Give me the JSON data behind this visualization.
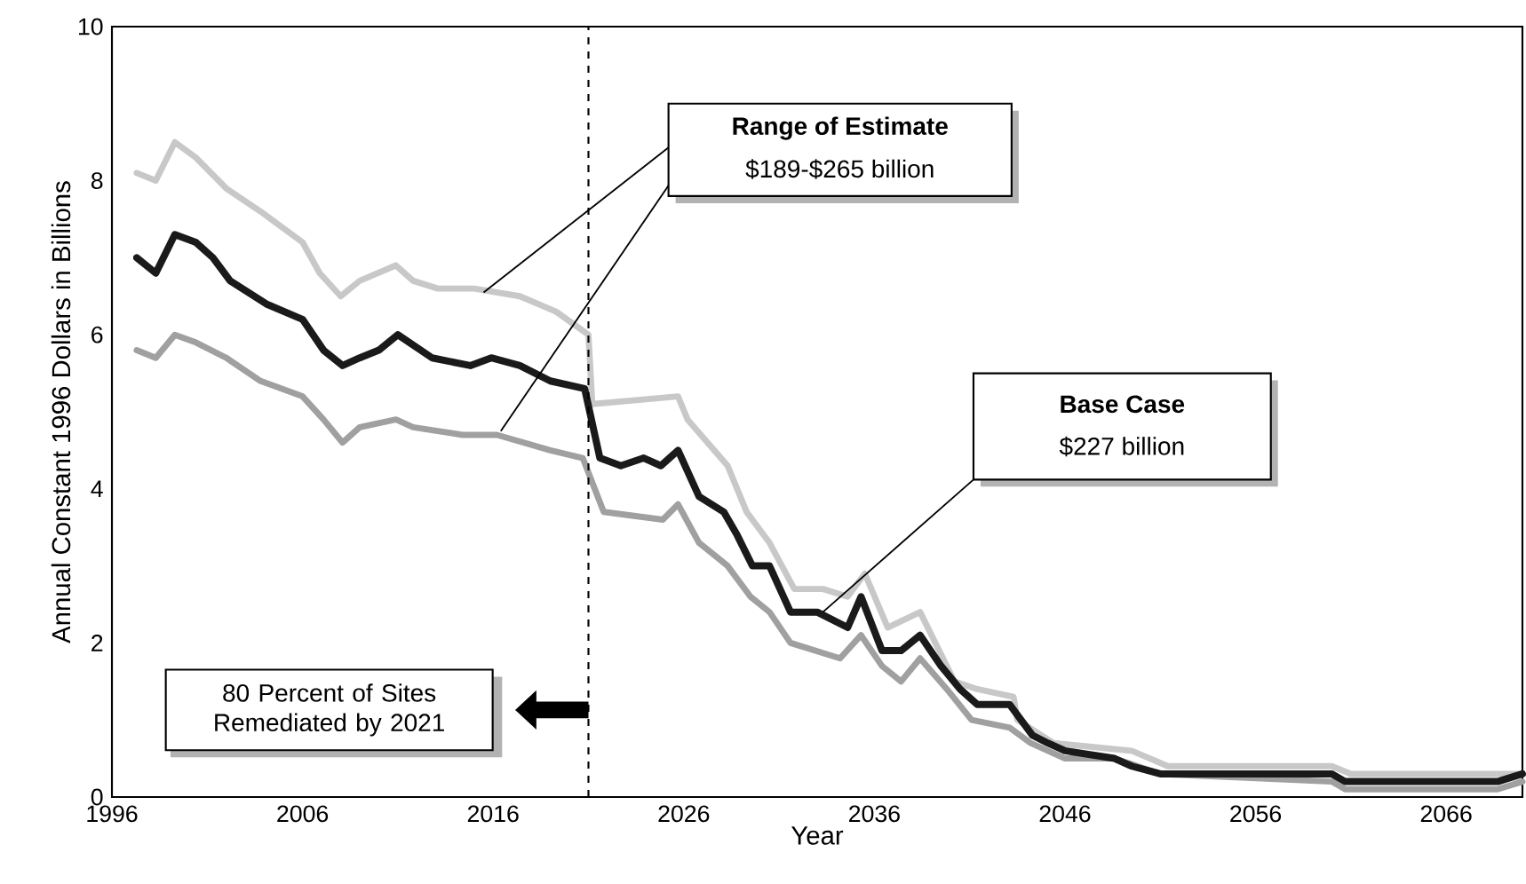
{
  "chart_data": {
    "type": "line",
    "xlabel": "Year",
    "ylabel": "Annual Constant 1996 Dollars in Billions",
    "xlim": [
      1996,
      2070
    ],
    "xticks": [
      1996,
      2006,
      2016,
      2026,
      2036,
      2046,
      2056,
      2066
    ],
    "ylim": [
      0,
      10
    ],
    "yticks": [
      0,
      2,
      4,
      6,
      8,
      10
    ],
    "marker": "none",
    "line_style": "solid",
    "series": [
      {
        "color": "#c8c8c8",
        "x": [
          1997.3,
          1998.3,
          1999.3,
          2000.4,
          2002.0,
          2003.8,
          2006.0,
          2006.9,
          2008.0,
          2009.0,
          2010.9,
          2011.8,
          2013.1,
          2015.0,
          2017.4,
          2019.3,
          2021.0,
          2021.2,
          2025.7,
          2026.2,
          2028.3,
          2029.3,
          2030.5,
          2031.8,
          2033.3,
          2034.6,
          2035.5,
          2036.7,
          2038.4,
          2040.2,
          2041.4,
          2043.3,
          2043.5,
          2045.4,
          2049.5,
          2051.4,
          2060.0,
          2061.0,
          2068.7,
          2070.0
        ],
        "values": [
          8.1,
          8.0,
          8.5,
          8.3,
          7.9,
          7.6,
          7.2,
          6.8,
          6.5,
          6.7,
          6.9,
          6.7,
          6.6,
          6.6,
          6.5,
          6.3,
          6.0,
          5.1,
          5.2,
          4.9,
          4.3,
          3.7,
          3.3,
          2.7,
          2.7,
          2.6,
          2.9,
          2.2,
          2.4,
          1.5,
          1.4,
          1.3,
          1.0,
          0.7,
          0.6,
          0.4,
          0.4,
          0.3,
          0.3,
          0.3
        ]
      },
      {
        "color": "#a0a0a0",
        "x": [
          1997.3,
          1998.3,
          1999.3,
          2000.4,
          2002.0,
          2003.8,
          2006.0,
          2007.1,
          2008.1,
          2009.0,
          2010.9,
          2011.8,
          2014.4,
          2016.2,
          2019.0,
          2020.7,
          2021.8,
          2024.9,
          2025.7,
          2026.8,
          2028.3,
          2029.5,
          2030.5,
          2031.6,
          2034.2,
          2035.3,
          2036.4,
          2037.4,
          2038.4,
          2039.8,
          2041.1,
          2043.1,
          2044.2,
          2046.0,
          2048.6,
          2051.0,
          2060.0,
          2060.7,
          2068.7,
          2070.0
        ],
        "values": [
          5.8,
          5.7,
          6.0,
          5.9,
          5.7,
          5.4,
          5.2,
          4.9,
          4.6,
          4.8,
          4.9,
          4.8,
          4.7,
          4.7,
          4.5,
          4.4,
          3.7,
          3.6,
          3.8,
          3.3,
          3.0,
          2.6,
          2.4,
          2.0,
          1.8,
          2.1,
          1.7,
          1.5,
          1.8,
          1.4,
          1.0,
          0.9,
          0.7,
          0.5,
          0.5,
          0.3,
          0.2,
          0.1,
          0.1,
          0.2
        ]
      },
      {
        "color": "#1a1a1a",
        "x": [
          1997.3,
          1998.3,
          1999.3,
          2000.4,
          2001.3,
          2002.2,
          2004.1,
          2006.0,
          2007.1,
          2008.1,
          2009.0,
          2010.0,
          2011.0,
          2012.8,
          2014.8,
          2015.9,
          2017.4,
          2019.0,
          2020.8,
          2021.6,
          2022.7,
          2023.9,
          2024.8,
          2025.7,
          2026.8,
          2028.1,
          2028.8,
          2029.6,
          2030.5,
          2031.6,
          2033.0,
          2034.6,
          2035.3,
          2036.4,
          2037.4,
          2038.4,
          2039.5,
          2040.5,
          2041.4,
          2043.1,
          2044.3,
          2045.1,
          2046.0,
          2048.6,
          2049.5,
          2051.0,
          2060.0,
          2060.7,
          2068.7,
          2070.0
        ],
        "values": [
          7.0,
          6.8,
          7.3,
          7.2,
          7.0,
          6.7,
          6.4,
          6.2,
          5.8,
          5.6,
          5.7,
          5.8,
          6.0,
          5.7,
          5.6,
          5.7,
          5.6,
          5.4,
          5.3,
          4.4,
          4.3,
          4.4,
          4.3,
          4.5,
          3.9,
          3.7,
          3.4,
          3.0,
          3.0,
          2.4,
          2.4,
          2.2,
          2.6,
          1.9,
          1.9,
          2.1,
          1.7,
          1.4,
          1.2,
          1.2,
          0.8,
          0.7,
          0.6,
          0.5,
          0.4,
          0.3,
          0.3,
          0.2,
          0.2,
          0.3
        ]
      }
    ],
    "ref_lines": [
      {
        "axis": "x",
        "value": 2021,
        "label": "80 Percent of Sites Remediated by 2021",
        "line_style": "dashed",
        "color": "#000000"
      }
    ],
    "annotations": [
      "Range of Estimate",
      "$189-$265 billion",
      "Base Case",
      "$227 billion"
    ]
  }
}
